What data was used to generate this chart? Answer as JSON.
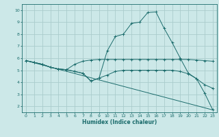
{
  "xlabel": "Humidex (Indice chaleur)",
  "bg_color": "#cce8e8",
  "grid_color": "#aacccc",
  "line_color": "#1a6b6b",
  "xlim": [
    -0.5,
    23.5
  ],
  "ylim": [
    1.5,
    10.5
  ],
  "yticks": [
    2,
    3,
    4,
    5,
    6,
    7,
    8,
    9,
    10
  ],
  "xticks": [
    0,
    1,
    2,
    3,
    4,
    5,
    6,
    7,
    8,
    9,
    10,
    11,
    12,
    13,
    14,
    15,
    16,
    17,
    18,
    19,
    20,
    21,
    22,
    23
  ],
  "series": [
    {
      "x": [
        0,
        1,
        2,
        3,
        4,
        5,
        6,
        7,
        8,
        9,
        10,
        11,
        12,
        13,
        14,
        15,
        16,
        17,
        18,
        19,
        20,
        21,
        22,
        23
      ],
      "y": [
        5.8,
        5.65,
        5.5,
        5.25,
        5.1,
        5.05,
        4.9,
        4.75,
        4.1,
        4.35,
        6.6,
        7.8,
        8.0,
        8.9,
        9.0,
        9.8,
        9.85,
        8.5,
        7.3,
        6.0,
        4.75,
        4.3,
        3.1,
        1.7
      ],
      "marker": "+"
    },
    {
      "x": [
        0,
        1,
        2,
        3,
        4,
        5,
        6,
        7,
        8,
        9,
        10,
        11,
        12,
        13,
        14,
        15,
        16,
        17,
        18,
        19,
        20,
        21,
        22,
        23
      ],
      "y": [
        5.8,
        5.65,
        5.5,
        5.25,
        5.1,
        5.05,
        5.5,
        5.75,
        5.85,
        5.9,
        5.9,
        5.9,
        5.9,
        5.9,
        5.9,
        5.9,
        5.9,
        5.9,
        5.9,
        5.9,
        5.9,
        5.85,
        5.8,
        5.75
      ],
      "marker": "+"
    },
    {
      "x": [
        0,
        1,
        2,
        3,
        4,
        5,
        6,
        7,
        8,
        9,
        10,
        11,
        12,
        13,
        14,
        15,
        16,
        17,
        18,
        19,
        20,
        21,
        22,
        23
      ],
      "y": [
        5.8,
        5.65,
        5.5,
        5.25,
        5.1,
        5.05,
        4.9,
        4.75,
        4.1,
        4.35,
        4.6,
        4.9,
        5.0,
        5.0,
        5.0,
        5.0,
        5.0,
        5.0,
        5.0,
        4.9,
        4.7,
        4.3,
        3.8,
        3.5
      ],
      "marker": "+"
    },
    {
      "x": [
        0,
        23
      ],
      "y": [
        5.8,
        1.7
      ],
      "marker": null
    }
  ]
}
